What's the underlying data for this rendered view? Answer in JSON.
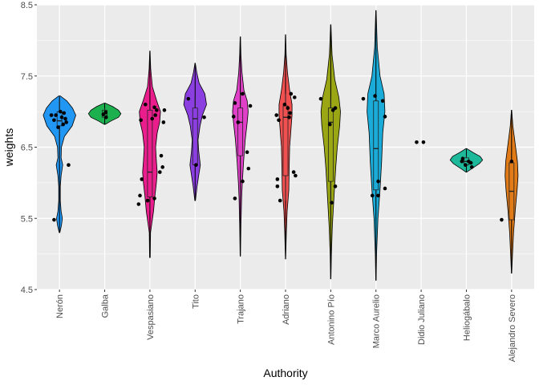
{
  "chart_data": {
    "type": "violin",
    "xlabel": "Authority",
    "ylabel": "weights",
    "ylim": [
      4.5,
      8.5
    ],
    "yticks": [
      4.5,
      5.5,
      6.5,
      7.5,
      8.5
    ],
    "ytick_labels": [
      "4.5",
      "5.5",
      "6.5",
      "7.5",
      "8.5"
    ],
    "grid": true,
    "panel_background": "#ebebeb",
    "grid_color": "#ffffff",
    "categories": [
      {
        "label": "Nerón",
        "color": "#2196F3",
        "range": [
          5.3,
          7.22
        ],
        "violin": [
          [
            5.3,
            0.02
          ],
          [
            5.4,
            0.12
          ],
          [
            5.5,
            0.18
          ],
          [
            5.6,
            0.1
          ],
          [
            5.75,
            0.05
          ],
          [
            5.95,
            0.05
          ],
          [
            6.1,
            0.1
          ],
          [
            6.25,
            0.2
          ],
          [
            6.35,
            0.1
          ],
          [
            6.5,
            0.12
          ],
          [
            6.65,
            0.3
          ],
          [
            6.8,
            0.78
          ],
          [
            6.95,
            1.0
          ],
          [
            7.05,
            0.8
          ],
          [
            7.15,
            0.45
          ],
          [
            7.22,
            0.05
          ]
        ],
        "box": [
          6.8,
          6.87,
          7.0,
          6.25,
          7.18
        ],
        "points": [
          [
            0.1,
            6.98
          ],
          [
            -0.08,
            6.95
          ],
          [
            0.13,
            6.9
          ],
          [
            -0.18,
            6.95
          ],
          [
            0.05,
            6.92
          ],
          [
            0.15,
            6.85
          ],
          [
            -0.12,
            6.88
          ],
          [
            0.02,
            7.0
          ],
          [
            0.08,
            6.82
          ],
          [
            -0.03,
            6.78
          ],
          [
            0.2,
            6.25
          ],
          [
            -0.12,
            5.48
          ]
        ]
      },
      {
        "label": "Galba",
        "color": "#1DB04E",
        "range": [
          6.82,
          7.12
        ],
        "violin": [
          [
            6.82,
            0.02
          ],
          [
            6.87,
            0.4
          ],
          [
            6.92,
            0.85
          ],
          [
            6.97,
            1.0
          ],
          [
            7.02,
            0.85
          ],
          [
            7.07,
            0.5
          ],
          [
            7.12,
            0.02
          ]
        ],
        "box": [
          6.92,
          6.97,
          7.02,
          6.9,
          7.05
        ],
        "points": [
          [
            -0.03,
            6.96
          ],
          [
            0.03,
            6.92
          ],
          [
            0.02,
            6.99
          ]
        ]
      },
      {
        "label": "Vespasiano",
        "color": "#E91E8C",
        "range": [
          4.95,
          7.85
        ],
        "violin": [
          [
            4.95,
            0.02
          ],
          [
            5.3,
            0.04
          ],
          [
            5.6,
            0.22
          ],
          [
            5.8,
            0.3
          ],
          [
            6.0,
            0.4
          ],
          [
            6.15,
            0.45
          ],
          [
            6.3,
            0.4
          ],
          [
            6.5,
            0.35
          ],
          [
            6.7,
            0.45
          ],
          [
            6.85,
            0.6
          ],
          [
            7.0,
            0.65
          ],
          [
            7.15,
            0.42
          ],
          [
            7.35,
            0.15
          ],
          [
            7.6,
            0.05
          ],
          [
            7.85,
            0.01
          ]
        ],
        "box": [
          5.8,
          6.15,
          7.02,
          5.6,
          7.1
        ],
        "points": [
          [
            0.32,
            7.02
          ],
          [
            0.15,
            7.02
          ],
          [
            0.1,
            7.06
          ],
          [
            -0.2,
            6.88
          ],
          [
            0.3,
            6.85
          ],
          [
            0.05,
            6.9
          ],
          [
            0.12,
            6.95
          ],
          [
            -0.1,
            7.1
          ],
          [
            0.25,
            6.38
          ],
          [
            0.28,
            6.22
          ],
          [
            0.22,
            6.15
          ],
          [
            -0.18,
            6.05
          ],
          [
            -0.22,
            5.82
          ],
          [
            0.1,
            5.78
          ],
          [
            -0.05,
            5.75
          ],
          [
            -0.25,
            5.7
          ]
        ]
      },
      {
        "label": "Tito",
        "color": "#8B3FE0",
        "range": [
          5.75,
          7.68
        ],
        "violin": [
          [
            5.75,
            0.02
          ],
          [
            5.95,
            0.12
          ],
          [
            6.1,
            0.22
          ],
          [
            6.25,
            0.32
          ],
          [
            6.45,
            0.22
          ],
          [
            6.6,
            0.18
          ],
          [
            6.8,
            0.3
          ],
          [
            6.95,
            0.45
          ],
          [
            7.1,
            0.7
          ],
          [
            7.25,
            0.6
          ],
          [
            7.4,
            0.25
          ],
          [
            7.55,
            0.1
          ],
          [
            7.68,
            0.01
          ]
        ],
        "box": [
          6.25,
          6.9,
          7.05,
          6.25,
          7.2
        ],
        "points": [
          [
            -0.15,
            7.18
          ],
          [
            0.2,
            6.92
          ],
          [
            0.02,
            6.25
          ]
        ]
      },
      {
        "label": "Trajano",
        "color": "#E040C8",
        "range": [
          4.97,
          8.05
        ],
        "violin": [
          [
            4.97,
            0.01
          ],
          [
            5.4,
            0.04
          ],
          [
            5.8,
            0.08
          ],
          [
            6.0,
            0.12
          ],
          [
            6.3,
            0.2
          ],
          [
            6.6,
            0.3
          ],
          [
            6.85,
            0.42
          ],
          [
            7.0,
            0.48
          ],
          [
            7.15,
            0.42
          ],
          [
            7.3,
            0.22
          ],
          [
            7.55,
            0.1
          ],
          [
            7.8,
            0.04
          ],
          [
            8.05,
            0.01
          ]
        ],
        "box": [
          6.38,
          6.85,
          7.05,
          5.78,
          7.25
        ],
        "points": [
          [
            -0.12,
            7.12
          ],
          [
            0.22,
            7.08
          ],
          [
            0.05,
            7.25
          ],
          [
            -0.15,
            6.93
          ],
          [
            -0.05,
            6.85
          ],
          [
            0.15,
            6.43
          ],
          [
            0.18,
            6.2
          ],
          [
            0.05,
            6.02
          ],
          [
            -0.12,
            5.78
          ]
        ]
      },
      {
        "label": "Adriano",
        "color": "#F05050",
        "range": [
          4.93,
          8.08
        ],
        "violin": [
          [
            4.93,
            0.01
          ],
          [
            5.3,
            0.05
          ],
          [
            5.6,
            0.1
          ],
          [
            5.9,
            0.2
          ],
          [
            6.2,
            0.22
          ],
          [
            6.5,
            0.25
          ],
          [
            6.8,
            0.35
          ],
          [
            6.95,
            0.4
          ],
          [
            7.1,
            0.4
          ],
          [
            7.3,
            0.25
          ],
          [
            7.55,
            0.12
          ],
          [
            7.8,
            0.04
          ],
          [
            8.08,
            0.01
          ]
        ],
        "box": [
          6.1,
          6.92,
          7.08,
          5.75,
          7.25
        ],
        "points": [
          [
            0.2,
            7.2
          ],
          [
            0.12,
            7.25
          ],
          [
            -0.02,
            7.1
          ],
          [
            0.05,
            7.05
          ],
          [
            -0.2,
            6.95
          ],
          [
            0.1,
            6.98
          ],
          [
            0.08,
            6.92
          ],
          [
            -0.15,
            6.88
          ],
          [
            -0.18,
            6.05
          ],
          [
            0.18,
            6.15
          ],
          [
            0.22,
            6.1
          ],
          [
            -0.18,
            5.95
          ],
          [
            -0.12,
            5.75
          ]
        ]
      },
      {
        "label": "Antonino Pío",
        "color": "#9AA614",
        "range": [
          4.65,
          8.22
        ],
        "violin": [
          [
            4.65,
            0.01
          ],
          [
            5.0,
            0.04
          ],
          [
            5.4,
            0.1
          ],
          [
            5.8,
            0.2
          ],
          [
            6.2,
            0.3
          ],
          [
            6.5,
            0.4
          ],
          [
            6.8,
            0.55
          ],
          [
            7.0,
            0.6
          ],
          [
            7.2,
            0.5
          ],
          [
            7.45,
            0.25
          ],
          [
            7.8,
            0.08
          ],
          [
            8.22,
            0.01
          ]
        ],
        "box": [
          6.02,
          6.85,
          7.05,
          5.7,
          7.2
        ],
        "points": [
          [
            -0.22,
            7.18
          ],
          [
            0.1,
            7.05
          ],
          [
            0.05,
            7.02
          ],
          [
            -0.02,
            6.82
          ],
          [
            0.1,
            5.95
          ],
          [
            0.02,
            5.72
          ]
        ]
      },
      {
        "label": "Marco Aurelio",
        "color": "#1AABD8",
        "range": [
          4.63,
          8.42
        ],
        "violin": [
          [
            4.63,
            0.01
          ],
          [
            5.0,
            0.04
          ],
          [
            5.5,
            0.12
          ],
          [
            5.9,
            0.25
          ],
          [
            6.3,
            0.35
          ],
          [
            6.7,
            0.42
          ],
          [
            7.0,
            0.55
          ],
          [
            7.25,
            0.5
          ],
          [
            7.5,
            0.25
          ],
          [
            7.9,
            0.08
          ],
          [
            8.42,
            0.01
          ]
        ],
        "box": [
          5.9,
          6.48,
          7.15,
          5.82,
          7.22
        ],
        "points": [
          [
            -0.28,
            7.18
          ],
          [
            -0.02,
            7.22
          ],
          [
            0.15,
            7.15
          ],
          [
            0.2,
            6.93
          ],
          [
            0.05,
            6.02
          ],
          [
            0.2,
            5.92
          ],
          [
            0.05,
            5.82
          ],
          [
            -0.08,
            5.82
          ]
        ]
      },
      {
        "label": "Didio Juliano",
        "color": "#00B8C8",
        "range": [
          6.57,
          6.57
        ],
        "violin": [],
        "box": null,
        "points": [
          [
            -0.1,
            6.57
          ],
          [
            0.05,
            6.57
          ]
        ]
      },
      {
        "label": "Heliogábalo",
        "color": "#1DB99A",
        "range": [
          6.15,
          6.48
        ],
        "violin": [
          [
            6.15,
            0.02
          ],
          [
            6.2,
            0.35
          ],
          [
            6.27,
            0.8
          ],
          [
            6.32,
            1.0
          ],
          [
            6.37,
            0.85
          ],
          [
            6.42,
            0.45
          ],
          [
            6.48,
            0.02
          ]
        ],
        "box": [
          6.25,
          6.3,
          6.35,
          6.22,
          6.38
        ],
        "points": [
          [
            -0.08,
            6.34
          ],
          [
            0.05,
            6.3
          ],
          [
            0.1,
            6.28
          ],
          [
            -0.02,
            6.25
          ],
          [
            0.12,
            6.22
          ],
          [
            -0.1,
            6.3
          ]
        ]
      },
      {
        "label": "Alejandro Severo",
        "color": "#E07B18",
        "range": [
          4.73,
          7.02
        ],
        "violin": [
          [
            4.73,
            0.01
          ],
          [
            5.0,
            0.06
          ],
          [
            5.3,
            0.12
          ],
          [
            5.6,
            0.22
          ],
          [
            5.9,
            0.34
          ],
          [
            6.1,
            0.4
          ],
          [
            6.3,
            0.36
          ],
          [
            6.55,
            0.22
          ],
          [
            6.8,
            0.08
          ],
          [
            7.02,
            0.01
          ]
        ],
        "box": [
          5.48,
          5.88,
          6.28,
          5.48,
          6.3
        ],
        "points": [
          [
            0.0,
            6.3
          ],
          [
            -0.22,
            5.48
          ]
        ]
      }
    ]
  }
}
